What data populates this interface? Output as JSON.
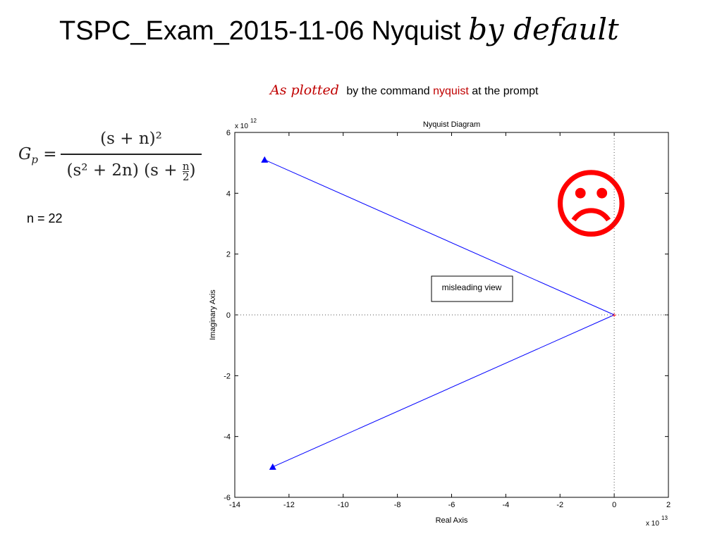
{
  "slide": {
    "title_main": "TSPC_Exam_2015-11-06 Nyquist",
    "title_script": "by default",
    "subtitle_script": "As plotted",
    "subtitle_pre": "by the command",
    "subtitle_cmd": "nyquist",
    "subtitle_post": "at the prompt",
    "n_label": "n = 22",
    "sad_face_icon": "sad-face-icon",
    "sad_face_color": "#ff0000"
  },
  "formula": {
    "lhs": "G",
    "lhs_sub": "p",
    "numerator": "(s + n)²",
    "denominator_part1": "(s² + 2n)",
    "denominator_part2_open": "(s +",
    "denominator_frac_num": "n",
    "denominator_frac_den": "2",
    "denominator_part2_close": ")"
  },
  "chart_data": {
    "type": "line",
    "title": "Nyquist Diagram",
    "xlabel": "Real Axis",
    "ylabel": "Imaginary Axis",
    "x_exponent_label": "x 10",
    "x_exponent": "13",
    "y_exponent_label": "x 10",
    "y_exponent": "12",
    "xlim": [
      -14,
      2
    ],
    "ylim": [
      -6,
      6
    ],
    "x_ticks": [
      -14,
      -12,
      -10,
      -8,
      -6,
      -4,
      -2,
      0,
      2
    ],
    "y_ticks": [
      -6,
      -4,
      -2,
      0,
      2,
      4,
      6
    ],
    "grid": false,
    "line_color": "#0000ff",
    "series": [
      {
        "points": [
          [
            -12.9,
            5.1
          ],
          [
            0,
            0
          ]
        ]
      },
      {
        "points": [
          [
            -12.6,
            -5.0
          ],
          [
            0,
            0
          ]
        ]
      }
    ],
    "arrow_markers": [
      [
        -12.9,
        5.1
      ],
      [
        -12.6,
        -5.0
      ]
    ],
    "origin_marker_color": "#ff0000",
    "annotation": "misleading view"
  }
}
